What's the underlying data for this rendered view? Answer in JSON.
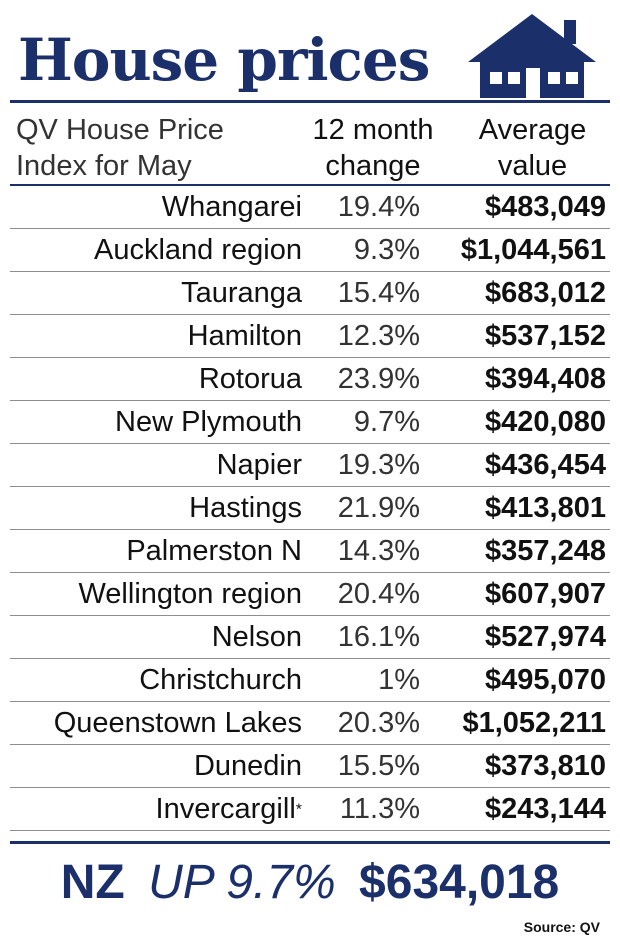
{
  "header": {
    "title": "House prices",
    "subtitle_line1": "QV House Price",
    "subtitle_line2": "Index for May",
    "col_change_line1": "12 month",
    "col_change_line2": "change",
    "col_avg_line1": "Average",
    "col_avg_line2": "value"
  },
  "chart_data": {
    "type": "table",
    "columns": [
      "",
      "12 month change",
      "Average value"
    ],
    "rows": [
      {
        "region": "Whangarei",
        "change": "19.4%",
        "value": "$483,049"
      },
      {
        "region": "Auckland region",
        "change": "9.3%",
        "value": "$1,044,561"
      },
      {
        "region": "Tauranga",
        "change": "15.4%",
        "value": "$683,012"
      },
      {
        "region": "Hamilton",
        "change": "12.3%",
        "value": "$537,152"
      },
      {
        "region": "Rotorua",
        "change": "23.9%",
        "value": "$394,408"
      },
      {
        "region": "New Plymouth",
        "change": "9.7%",
        "value": "$420,080"
      },
      {
        "region": "Napier",
        "change": "19.3%",
        "value": "$436,454"
      },
      {
        "region": "Hastings",
        "change": "21.9%",
        "value": "$413,801"
      },
      {
        "region": "Palmerston N",
        "change": "14.3%",
        "value": "$357,248"
      },
      {
        "region": "Wellington region",
        "change": "20.4%",
        "value": "$607,907"
      },
      {
        "region": "Nelson",
        "change": "16.1%",
        "value": "$527,974"
      },
      {
        "region": "Christchurch",
        "change": "1%",
        "value": "$495,070"
      },
      {
        "region": "Queenstown Lakes",
        "change": "20.3%",
        "value": "$1,052,211"
      },
      {
        "region": "Dunedin",
        "change": "15.5%",
        "value": "$373,810"
      },
      {
        "region": "Invercargill",
        "change": "11.3%",
        "value": "$243,144",
        "marker": "*"
      }
    ]
  },
  "total": {
    "label": "NZ",
    "change": "UP 9.7%",
    "value": "$634,018"
  },
  "source": "Source: QV",
  "colors": {
    "accent": "#1b2f6b"
  }
}
